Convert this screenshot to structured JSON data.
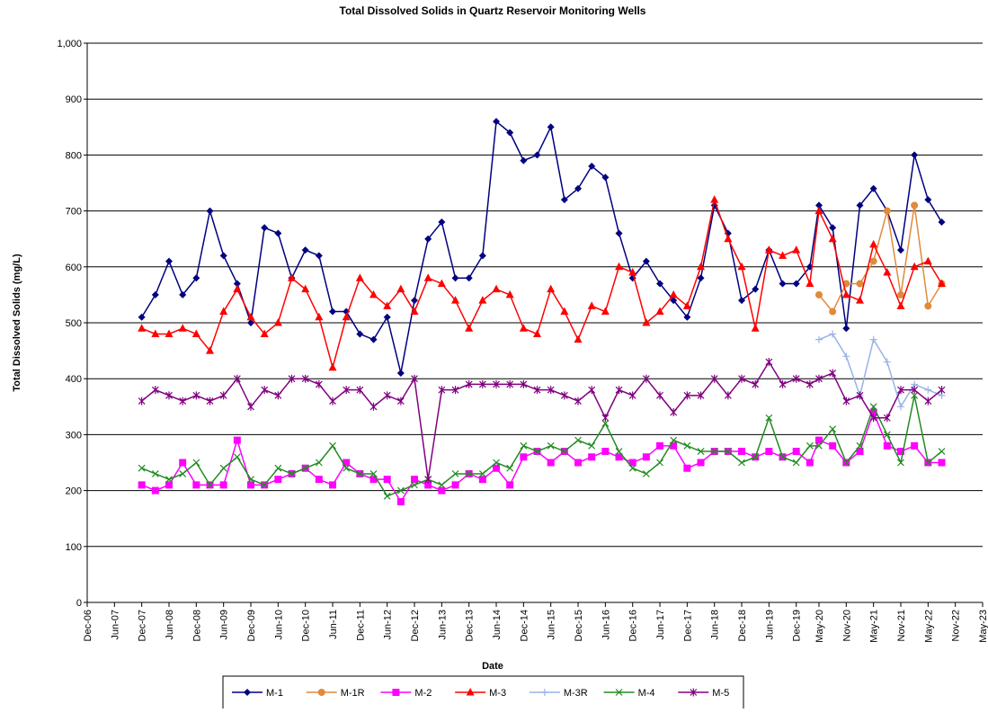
{
  "chart_data": {
    "type": "line",
    "title": "Total Dissolved Solids in Quartz Reservoir Monitoring Wells",
    "x_label": "Date",
    "y_label": "Total Dissolved Solids (mg/L)",
    "xlim": [
      "Dec-06",
      "May-23"
    ],
    "xticks": [
      "Dec-06",
      "Jun-07",
      "Dec-07",
      "Jun-08",
      "Dec-08",
      "Jun-09",
      "Dec-09",
      "Jun-10",
      "Dec-10",
      "Jun-11",
      "Dec-11",
      "Jun-12",
      "Dec-12",
      "Jun-13",
      "Dec-13",
      "Jun-14",
      "Dec-14",
      "Jun-15",
      "Dec-15",
      "Jun-16",
      "Dec-16",
      "Jun-17",
      "Dec-17",
      "Jun-18",
      "Dec-18",
      "Jun-19",
      "Dec-19",
      "May-20",
      "Nov-20",
      "May-21",
      "Nov-21",
      "May-22",
      "Nov-22",
      "May-23"
    ],
    "ylim": [
      0,
      1000
    ],
    "yticks": [
      0,
      100,
      200,
      300,
      400,
      500,
      600,
      700,
      800,
      900,
      {
        "value": 1000,
        "label": "1,000"
      }
    ],
    "grid": true,
    "legend": "bottom",
    "x": [
      "Dec-07",
      "Mar-08",
      "Jun-08",
      "Sep-08",
      "Dec-08",
      "Mar-09",
      "Jun-09",
      "Sep-09",
      "Dec-09",
      "Mar-10",
      "Jun-10",
      "Sep-10",
      "Dec-10",
      "Mar-11",
      "Jun-11",
      "Sep-11",
      "Dec-11",
      "Mar-12",
      "Jun-12",
      "Sep-12",
      "Dec-12",
      "Mar-13",
      "Jun-13",
      "Sep-13",
      "Dec-13",
      "Mar-14",
      "Jun-14",
      "Sep-14",
      "Dec-14",
      "Mar-15",
      "Jun-15",
      "Sep-15",
      "Dec-15",
      "Mar-16",
      "Jun-16",
      "Sep-16",
      "Dec-16",
      "Mar-17",
      "Jun-17",
      "Sep-17",
      "Dec-17",
      "Mar-18",
      "Jun-18",
      "Sep-18",
      "Dec-18",
      "Mar-19",
      "Jun-19",
      "Sep-19",
      "Dec-19",
      "Mar-20",
      "May-20",
      "Aug-20",
      "Nov-20",
      "Feb-21",
      "May-21",
      "Aug-21",
      "Nov-21",
      "Feb-22",
      "May-22",
      "Aug-22"
    ],
    "series": [
      {
        "name": "M-1",
        "color": "#000080",
        "marker": "diamond",
        "values": [
          510,
          550,
          610,
          550,
          580,
          700,
          620,
          570,
          500,
          670,
          660,
          580,
          630,
          620,
          520,
          520,
          480,
          470,
          510,
          410,
          540,
          650,
          680,
          580,
          580,
          620,
          860,
          840,
          790,
          800,
          850,
          720,
          740,
          780,
          760,
          660,
          580,
          610,
          570,
          540,
          510,
          580,
          710,
          660,
          540,
          560,
          630,
          570,
          570,
          600,
          710,
          670,
          490,
          710,
          740,
          700,
          630,
          800,
          720,
          680
        ]
      },
      {
        "name": "M-1R",
        "color": "#e08b3a",
        "marker": "circle",
        "values": [
          null,
          null,
          null,
          null,
          null,
          null,
          null,
          null,
          null,
          null,
          null,
          null,
          null,
          null,
          null,
          null,
          null,
          null,
          null,
          null,
          null,
          null,
          null,
          null,
          null,
          null,
          null,
          null,
          null,
          null,
          null,
          null,
          null,
          null,
          null,
          null,
          null,
          null,
          null,
          null,
          null,
          null,
          null,
          null,
          null,
          null,
          null,
          null,
          null,
          null,
          550,
          520,
          570,
          570,
          610,
          700,
          550,
          710,
          530,
          570
        ]
      },
      {
        "name": "M-2",
        "color": "#ff00ff",
        "marker": "square",
        "values": [
          210,
          200,
          210,
          250,
          210,
          210,
          210,
          290,
          210,
          210,
          220,
          230,
          240,
          220,
          210,
          250,
          230,
          220,
          220,
          180,
          220,
          210,
          200,
          210,
          230,
          220,
          240,
          210,
          260,
          270,
          250,
          270,
          250,
          260,
          270,
          260,
          250,
          260,
          280,
          280,
          240,
          250,
          270,
          270,
          270,
          260,
          270,
          260,
          270,
          250,
          290,
          280,
          250,
          270,
          340,
          280,
          270,
          280,
          250,
          250
        ]
      },
      {
        "name": "M-3",
        "color": "#ff0000",
        "marker": "triangle",
        "values": [
          490,
          480,
          480,
          490,
          480,
          450,
          520,
          560,
          510,
          480,
          500,
          580,
          560,
          510,
          420,
          510,
          580,
          550,
          530,
          560,
          520,
          580,
          570,
          540,
          490,
          540,
          560,
          550,
          490,
          480,
          560,
          520,
          470,
          530,
          520,
          600,
          590,
          500,
          520,
          550,
          530,
          600,
          720,
          650,
          600,
          490,
          630,
          620,
          630,
          570,
          700,
          650,
          550,
          540,
          640,
          590,
          530,
          600,
          610,
          570
        ]
      },
      {
        "name": "M-3R",
        "color": "#99b3e6",
        "marker": "plus",
        "values": [
          null,
          null,
          null,
          null,
          null,
          null,
          null,
          null,
          null,
          null,
          null,
          null,
          null,
          null,
          null,
          null,
          null,
          null,
          null,
          null,
          null,
          null,
          null,
          null,
          null,
          null,
          null,
          null,
          null,
          null,
          null,
          null,
          null,
          null,
          null,
          null,
          null,
          null,
          null,
          null,
          null,
          null,
          null,
          null,
          null,
          null,
          null,
          null,
          null,
          null,
          470,
          480,
          440,
          370,
          470,
          430,
          350,
          390,
          380,
          370
        ]
      },
      {
        "name": "M-4",
        "color": "#228b22",
        "marker": "x",
        "values": [
          240,
          230,
          220,
          230,
          250,
          210,
          240,
          260,
          220,
          210,
          240,
          230,
          240,
          250,
          280,
          240,
          230,
          230,
          190,
          200,
          210,
          220,
          210,
          230,
          230,
          230,
          250,
          240,
          280,
          270,
          280,
          270,
          290,
          280,
          320,
          270,
          240,
          230,
          250,
          290,
          280,
          270,
          270,
          270,
          250,
          260,
          330,
          260,
          250,
          280,
          280,
          310,
          250,
          280,
          350,
          300,
          250,
          370,
          250,
          270
        ]
      },
      {
        "name": "M-5",
        "color": "#800080",
        "marker": "star",
        "values": [
          360,
          380,
          370,
          360,
          370,
          360,
          370,
          400,
          350,
          380,
          370,
          400,
          400,
          390,
          360,
          380,
          380,
          350,
          370,
          360,
          400,
          220,
          380,
          380,
          390,
          390,
          390,
          390,
          390,
          380,
          380,
          370,
          360,
          380,
          330,
          380,
          370,
          400,
          370,
          340,
          370,
          370,
          400,
          370,
          400,
          390,
          430,
          390,
          400,
          390,
          400,
          410,
          360,
          370,
          330,
          330,
          380,
          380,
          360,
          380
        ]
      }
    ]
  }
}
